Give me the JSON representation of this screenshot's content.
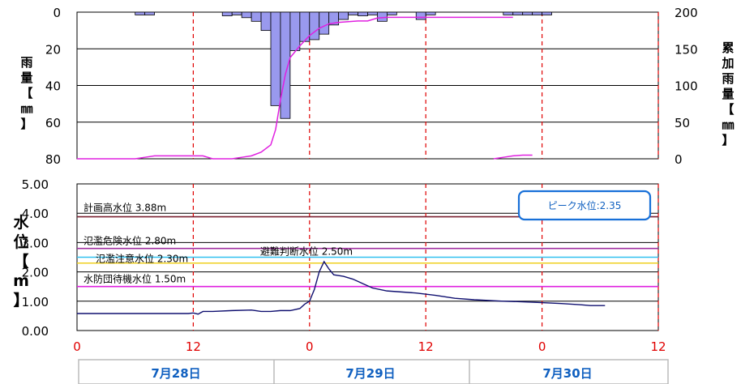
{
  "chart_data": [
    {
      "type": "bar+line",
      "ylabel": "雨量【㎜】",
      "y2label": "累加雨量【㎜】",
      "ylim": [
        0,
        80
      ],
      "y_inverted": true,
      "yticks": [
        "0",
        "20",
        "40",
        "60",
        "80"
      ],
      "y2lim": [
        0,
        200
      ],
      "y2ticks": [
        "200",
        "150",
        "100",
        "50",
        "0"
      ],
      "x_hours_range": [
        0,
        60
      ],
      "grid": true,
      "rain_bar_color": "#9999ee",
      "cum_line_color": "#e020e0",
      "hourly_rain": [
        {
          "t": 6.5,
          "v": 1.5
        },
        {
          "t": 7.5,
          "v": 1.5
        },
        {
          "t": 15.5,
          "v": 2
        },
        {
          "t": 16.5,
          "v": 1.5
        },
        {
          "t": 17.5,
          "v": 3
        },
        {
          "t": 18.5,
          "v": 5
        },
        {
          "t": 19.5,
          "v": 10
        },
        {
          "t": 20.5,
          "v": 51
        },
        {
          "t": 21.5,
          "v": 58
        },
        {
          "t": 22.5,
          "v": 21
        },
        {
          "t": 23.5,
          "v": 16
        },
        {
          "t": 24.5,
          "v": 15
        },
        {
          "t": 25.5,
          "v": 12
        },
        {
          "t": 26.5,
          "v": 7
        },
        {
          "t": 27.5,
          "v": 4
        },
        {
          "t": 28.5,
          "v": 1.5
        },
        {
          "t": 29.5,
          "v": 2
        },
        {
          "t": 30.5,
          "v": 1.5
        },
        {
          "t": 31.5,
          "v": 5
        },
        {
          "t": 32.5,
          "v": 1.5
        },
        {
          "t": 35.5,
          "v": 4
        },
        {
          "t": 36.5,
          "v": 1.5
        },
        {
          "t": 44.5,
          "v": 1.5
        },
        {
          "t": 45.5,
          "v": 1.5
        },
        {
          "t": 46.5,
          "v": 1.5
        },
        {
          "t": 47.5,
          "v": 1.5
        },
        {
          "t": 48.5,
          "v": 1.5
        }
      ],
      "cumulative_rain": [
        [
          0,
          0
        ],
        [
          6,
          0
        ],
        [
          7,
          2
        ],
        [
          8,
          4
        ],
        [
          12,
          4
        ],
        [
          13,
          4
        ],
        [
          14,
          0
        ],
        [
          16,
          0
        ],
        [
          17,
          2
        ],
        [
          18,
          4
        ],
        [
          19,
          9
        ],
        [
          20,
          19
        ],
        [
          20.5,
          40
        ],
        [
          21,
          80
        ],
        [
          21.5,
          115
        ],
        [
          22,
          138
        ],
        [
          23,
          154
        ],
        [
          24,
          168
        ],
        [
          25,
          178
        ],
        [
          26,
          184
        ],
        [
          27,
          186
        ],
        [
          28,
          187
        ],
        [
          29,
          188
        ],
        [
          30,
          188
        ],
        [
          31,
          192
        ],
        [
          32,
          193
        ],
        [
          38,
          193
        ],
        [
          45,
          193
        ]
      ],
      "cumulative_rain_tail": [
        [
          43,
          0
        ],
        [
          44,
          2
        ],
        [
          45,
          4
        ],
        [
          46,
          5
        ],
        [
          47,
          5
        ]
      ]
    },
    {
      "type": "line",
      "ylabel": "水位【m】",
      "ylim": [
        0,
        5
      ],
      "yticks": [
        "5.00",
        "4.00",
        "3.00",
        "2.00",
        "1.00",
        "0.00"
      ],
      "xticks": [
        "0",
        "12",
        "0",
        "12",
        "0",
        "12"
      ],
      "x_tick_hours": [
        0,
        12,
        24,
        36,
        48,
        60
      ],
      "grid": true,
      "line_color": "#101070",
      "water_level": [
        [
          0,
          0.58
        ],
        [
          4,
          0.58
        ],
        [
          8,
          0.58
        ],
        [
          11.5,
          0.58
        ],
        [
          12,
          0.6
        ],
        [
          12.5,
          0.56
        ],
        [
          13,
          0.65
        ],
        [
          14,
          0.65
        ],
        [
          16,
          0.68
        ],
        [
          18,
          0.7
        ],
        [
          19,
          0.65
        ],
        [
          20,
          0.65
        ],
        [
          21,
          0.68
        ],
        [
          22,
          0.68
        ],
        [
          23,
          0.75
        ],
        [
          23.5,
          0.9
        ],
        [
          24,
          1.0
        ],
        [
          24.5,
          1.4
        ],
        [
          25,
          2.0
        ],
        [
          25.5,
          2.35
        ],
        [
          26,
          2.1
        ],
        [
          26.5,
          1.9
        ],
        [
          27.5,
          1.85
        ],
        [
          28.5,
          1.75
        ],
        [
          29.5,
          1.6
        ],
        [
          30.5,
          1.45
        ],
        [
          32,
          1.35
        ],
        [
          35,
          1.28
        ],
        [
          37,
          1.2
        ],
        [
          39,
          1.1
        ],
        [
          41,
          1.05
        ],
        [
          44,
          1.0
        ],
        [
          46,
          0.98
        ],
        [
          48,
          0.95
        ],
        [
          50,
          0.92
        ],
        [
          52,
          0.88
        ],
        [
          53,
          0.85
        ],
        [
          54.5,
          0.85
        ]
      ],
      "levels": [
        {
          "label": "計画高水位 3.88m",
          "value": 3.88,
          "color": "#7a2030"
        },
        {
          "label": "氾濫危険水位 2.80m",
          "value": 2.8,
          "color": "#a030a0"
        },
        {
          "label": "避難判断水位 2.50m",
          "value": 2.5,
          "color": "#30c0f0"
        },
        {
          "label": "氾濫注意水位 2.30m",
          "value": 2.3,
          "color": "#f0d020"
        },
        {
          "label": "水防団待機水位 1.50m",
          "value": 1.5,
          "color": "#e020e0"
        }
      ],
      "peak_label": "ピーク水位:2.35",
      "dates": [
        "7月28日",
        "7月29日",
        "7月30日"
      ]
    }
  ]
}
